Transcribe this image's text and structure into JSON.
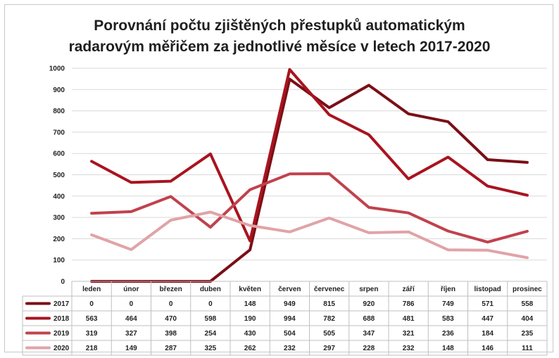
{
  "chart_data": {
    "type": "line",
    "title": "Porovnání počtu zjištěných přestupků automatickým radarovým měřičem za jednotlivé měsíce v letech 2017-2020",
    "title_lines": [
      "Porovnání počtu zjištěných přestupků automatickým",
      "radarovým měřičem za jednotlivé měsíce v letech 2017-2020"
    ],
    "categories": [
      "leden",
      "únor",
      "březen",
      "duben",
      "květen",
      "červen",
      "červenec",
      "srpen",
      "září",
      "říjen",
      "listopad",
      "prosinec"
    ],
    "ylim": [
      0,
      1000
    ],
    "yticks": [
      "0",
      "100",
      "200",
      "300",
      "400",
      "500",
      "600",
      "700",
      "800",
      "900",
      "1000"
    ],
    "grid": true,
    "legend": "data-table",
    "series": [
      {
        "name": "2017",
        "color": "#7a0f16",
        "values": [
          0,
          0,
          0,
          0,
          148,
          949,
          815,
          920,
          786,
          749,
          571,
          558
        ],
        "labels": [
          "0",
          "0",
          "0",
          "0",
          "148",
          "949",
          "815",
          "920",
          "786",
          "749",
          "571",
          "558"
        ]
      },
      {
        "name": "2018",
        "color": "#a8141f",
        "values": [
          563,
          464,
          470,
          598,
          190,
          994,
          782,
          688,
          481,
          583,
          447,
          404
        ],
        "labels": [
          "563",
          "464",
          "470",
          "598",
          "190",
          "994",
          "782",
          "688",
          "481",
          "583",
          "447",
          "404"
        ]
      },
      {
        "name": "2019",
        "color": "#c0424d",
        "values": [
          319,
          327,
          398,
          254,
          430,
          504,
          505,
          347,
          321,
          236,
          184,
          235
        ],
        "labels": [
          "319",
          "327",
          "398",
          "254",
          "430",
          "504",
          "505",
          "347",
          "321",
          "236",
          "184",
          "235"
        ]
      },
      {
        "name": "2020",
        "color": "#e0a3a7",
        "values": [
          218,
          149,
          287,
          325,
          262,
          232,
          297,
          228,
          232,
          148,
          146,
          111
        ],
        "labels": [
          "218",
          "149",
          "287",
          "325",
          "262",
          "232",
          "297",
          "228",
          "232",
          "148",
          "146",
          "111"
        ]
      }
    ]
  }
}
